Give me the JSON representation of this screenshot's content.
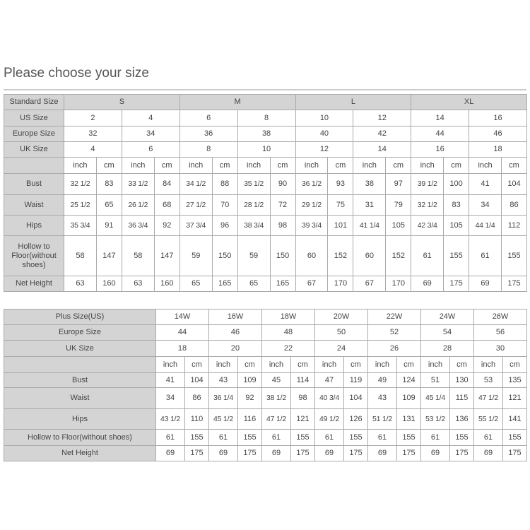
{
  "title": "Please choose your size",
  "table1": {
    "standard": {
      "label": "Standard Size",
      "values": [
        "S",
        "M",
        "L",
        "XL"
      ]
    },
    "us": {
      "label": "US Size",
      "values": [
        "2",
        "4",
        "6",
        "8",
        "10",
        "12",
        "14",
        "16"
      ]
    },
    "europe": {
      "label": "Europe Size",
      "values": [
        "32",
        "34",
        "36",
        "38",
        "40",
        "42",
        "44",
        "46"
      ]
    },
    "uk": {
      "label": "UK Size",
      "values": [
        "4",
        "6",
        "8",
        "10",
        "12",
        "14",
        "16",
        "18"
      ]
    },
    "units": [
      "inch",
      "cm"
    ],
    "measures": [
      {
        "label": "Bust",
        "values": [
          "32 1/2",
          "83",
          "33 1/2",
          "84",
          "34 1/2",
          "88",
          "35 1/2",
          "90",
          "36 1/2",
          "93",
          "38",
          "97",
          "39 1/2",
          "100",
          "41",
          "104"
        ]
      },
      {
        "label": "Waist",
        "values": [
          "25 1/2",
          "65",
          "26 1/2",
          "68",
          "27 1/2",
          "70",
          "28 1/2",
          "72",
          "29 1/2",
          "75",
          "31",
          "79",
          "32 1/2",
          "83",
          "34",
          "86"
        ]
      },
      {
        "label": "Hips",
        "values": [
          "35 3/4",
          "91",
          "36 3/4",
          "92",
          "37 3/4",
          "96",
          "38 3/4",
          "98",
          "39 3/4",
          "101",
          "41 1/4",
          "105",
          "42 3/4",
          "105",
          "44 1/4",
          "112"
        ]
      },
      {
        "label": "Hollow to Floor(without shoes)",
        "values": [
          "58",
          "147",
          "58",
          "147",
          "59",
          "150",
          "59",
          "150",
          "60",
          "152",
          "60",
          "152",
          "61",
          "155",
          "61",
          "155"
        ]
      },
      {
        "label": "Net Height",
        "values": [
          "63",
          "160",
          "63",
          "160",
          "65",
          "165",
          "65",
          "165",
          "67",
          "170",
          "67",
          "170",
          "69",
          "175",
          "69",
          "175"
        ]
      }
    ]
  },
  "table2": {
    "plus": {
      "label": "Plus Size(US)",
      "values": [
        "14W",
        "16W",
        "18W",
        "20W",
        "22W",
        "24W",
        "26W"
      ]
    },
    "europe": {
      "label": "Europe Size",
      "values": [
        "44",
        "46",
        "48",
        "50",
        "52",
        "54",
        "56"
      ]
    },
    "uk": {
      "label": "UK Size",
      "values": [
        "18",
        "20",
        "22",
        "24",
        "26",
        "28",
        "30"
      ]
    },
    "units": [
      "inch",
      "cm"
    ],
    "measures": [
      {
        "label": "Bust",
        "values": [
          "41",
          "104",
          "43",
          "109",
          "45",
          "114",
          "47",
          "119",
          "49",
          "124",
          "51",
          "130",
          "53",
          "135"
        ]
      },
      {
        "label": "Waist",
        "values": [
          "34",
          "86",
          "36 1/4",
          "92",
          "38 1/2",
          "98",
          "40 3/4",
          "104",
          "43",
          "109",
          "45 1/4",
          "115",
          "47 1/2",
          "121"
        ]
      },
      {
        "label": "Hips",
        "values": [
          "43 1/2",
          "110",
          "45 1/2",
          "116",
          "47 1/2",
          "121",
          "49 1/2",
          "126",
          "51 1/2",
          "131",
          "53 1/2",
          "136",
          "55 1/2",
          "141"
        ]
      },
      {
        "label": "Hollow to Floor(without shoes)",
        "values": [
          "61",
          "155",
          "61",
          "155",
          "61",
          "155",
          "61",
          "155",
          "61",
          "155",
          "61",
          "155",
          "61",
          "155"
        ]
      },
      {
        "label": "Net Height",
        "values": [
          "69",
          "175",
          "69",
          "175",
          "69",
          "175",
          "69",
          "175",
          "69",
          "175",
          "69",
          "175",
          "69",
          "175"
        ]
      }
    ]
  }
}
